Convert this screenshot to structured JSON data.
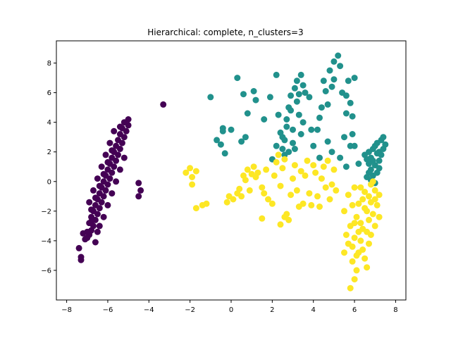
{
  "chart_data": {
    "type": "scatter",
    "title": "Hierarchical: complete, n_clusters=3",
    "xlabel": "",
    "ylabel": "",
    "xlim": [
      -8.5,
      8.5
    ],
    "ylim": [
      -8,
      9.5
    ],
    "xticks": [
      -8,
      -6,
      -4,
      -2,
      0,
      2,
      4,
      6,
      8
    ],
    "yticks": [
      -6,
      -4,
      -2,
      0,
      2,
      4,
      6,
      8
    ],
    "grid": false,
    "legend": "none",
    "series": [
      {
        "color": "#440154",
        "points": [
          [
            -7.3,
            -5.3
          ],
          [
            -7.3,
            -5.1
          ],
          [
            -7.4,
            -4.5
          ],
          [
            -7.1,
            -3.9
          ],
          [
            -6.9,
            -3.6
          ],
          [
            -6.8,
            -3.3
          ],
          [
            -7.0,
            -3.4
          ],
          [
            -6.7,
            -3.0
          ],
          [
            -6.9,
            -2.8
          ],
          [
            -6.6,
            -2.6
          ],
          [
            -6.8,
            -2.4
          ],
          [
            -6.5,
            -2.2
          ],
          [
            -6.7,
            -2.0
          ],
          [
            -6.4,
            -1.8
          ],
          [
            -6.6,
            -1.6
          ],
          [
            -6.3,
            -1.4
          ],
          [
            -6.5,
            -1.2
          ],
          [
            -6.2,
            -1.0
          ],
          [
            -6.4,
            -0.8
          ],
          [
            -6.1,
            -0.6
          ],
          [
            -6.3,
            -0.4
          ],
          [
            -6.0,
            -0.2
          ],
          [
            -6.2,
            0.0
          ],
          [
            -5.9,
            0.2
          ],
          [
            -6.1,
            0.4
          ],
          [
            -5.8,
            0.6
          ],
          [
            -6.0,
            0.8
          ],
          [
            -5.7,
            1.0
          ],
          [
            -5.9,
            1.2
          ],
          [
            -5.6,
            1.4
          ],
          [
            -5.8,
            1.6
          ],
          [
            -5.5,
            1.8
          ],
          [
            -5.7,
            2.0
          ],
          [
            -5.4,
            2.2
          ],
          [
            -5.6,
            2.4
          ],
          [
            -5.3,
            2.6
          ],
          [
            -5.5,
            2.8
          ],
          [
            -5.2,
            3.0
          ],
          [
            -5.4,
            3.2
          ],
          [
            -5.1,
            3.4
          ],
          [
            -5.3,
            3.6
          ],
          [
            -5.0,
            3.8
          ],
          [
            -5.2,
            4.0
          ],
          [
            -5.0,
            4.2
          ],
          [
            -6.5,
            -3.4
          ],
          [
            -6.6,
            -4.1
          ],
          [
            -6.4,
            -3.0
          ],
          [
            -6.2,
            -2.4
          ],
          [
            -6.0,
            -1.6
          ],
          [
            -5.8,
            -0.8
          ],
          [
            -5.6,
            0.0
          ],
          [
            -5.4,
            0.8
          ],
          [
            -5.2,
            1.6
          ],
          [
            -6.9,
            -1.4
          ],
          [
            -6.7,
            -0.6
          ],
          [
            -6.5,
            0.2
          ],
          [
            -6.3,
            1.0
          ],
          [
            -6.1,
            1.8
          ],
          [
            -5.9,
            2.6
          ],
          [
            -5.7,
            3.4
          ],
          [
            -7.2,
            -3.5
          ],
          [
            -6.8,
            -1.9
          ],
          [
            -6.6,
            -1.1
          ],
          [
            -6.2,
            0.5
          ],
          [
            -5.8,
            2.1
          ],
          [
            -5.4,
            3.7
          ],
          [
            -6.0,
            1.3
          ],
          [
            -6.4,
            -0.3
          ],
          [
            -6.8,
            -2.7
          ],
          [
            -7.0,
            -3.8
          ],
          [
            -4.5,
            -0.1
          ],
          [
            -4.4,
            -0.6
          ],
          [
            -4.5,
            -1.0
          ],
          [
            -3.3,
            5.2
          ]
        ]
      },
      {
        "color": "#21918c",
        "points": [
          [
            -1.0,
            5.7
          ],
          [
            -0.4,
            3.6
          ],
          [
            -0.4,
            3.4
          ],
          [
            0.0,
            3.5
          ],
          [
            -0.7,
            2.8
          ],
          [
            -0.5,
            2.5
          ],
          [
            -0.3,
            1.9
          ],
          [
            0.5,
            2.7
          ],
          [
            0.7,
            3.0
          ],
          [
            0.3,
            7.0
          ],
          [
            0.6,
            5.9
          ],
          [
            0.8,
            4.6
          ],
          [
            1.1,
            6.1
          ],
          [
            1.2,
            5.5
          ],
          [
            1.6,
            4.2
          ],
          [
            1.9,
            5.7
          ],
          [
            2.2,
            2.4
          ],
          [
            2.0,
            1.5
          ],
          [
            2.3,
            4.5
          ],
          [
            2.5,
            3.0
          ],
          [
            2.5,
            2.2
          ],
          [
            2.6,
            2.8
          ],
          [
            2.7,
            4.2
          ],
          [
            2.8,
            5.0
          ],
          [
            2.9,
            5.8
          ],
          [
            3.0,
            3.5
          ],
          [
            3.1,
            6.3
          ],
          [
            3.2,
            6.8
          ],
          [
            3.3,
            5.9
          ],
          [
            3.4,
            7.2
          ],
          [
            3.5,
            6.5
          ],
          [
            3.6,
            6.0
          ],
          [
            3.3,
            4.5
          ],
          [
            3.5,
            4.0
          ],
          [
            3.4,
            3.2
          ],
          [
            2.7,
            3.7
          ],
          [
            3.0,
            2.6
          ],
          [
            2.8,
            2.0
          ],
          [
            3.1,
            2.2
          ],
          [
            2.6,
            1.8
          ],
          [
            2.4,
            3.3
          ],
          [
            2.9,
            4.8
          ],
          [
            3.2,
            5.4
          ],
          [
            2.2,
            7.2
          ],
          [
            3.8,
            5.7
          ],
          [
            3.9,
            3.5
          ],
          [
            4.0,
            2.4
          ],
          [
            4.2,
            3.5
          ],
          [
            4.3,
            4.3
          ],
          [
            4.4,
            5.0
          ],
          [
            4.5,
            6.8
          ],
          [
            4.6,
            6.1
          ],
          [
            4.7,
            5.2
          ],
          [
            4.8,
            7.5
          ],
          [
            5.0,
            8.1
          ],
          [
            5.2,
            8.5
          ],
          [
            5.3,
            7.8
          ],
          [
            5.0,
            6.9
          ],
          [
            4.9,
            6.4
          ],
          [
            5.4,
            6.0
          ],
          [
            5.6,
            5.8
          ],
          [
            5.7,
            6.8
          ],
          [
            5.8,
            5.3
          ],
          [
            4.3,
            1.6
          ],
          [
            4.7,
            2.7
          ],
          [
            4.9,
            2.0
          ],
          [
            5.3,
            1.6
          ],
          [
            5.6,
            1.0
          ],
          [
            5.5,
            3.0
          ],
          [
            5.8,
            2.4
          ],
          [
            6.0,
            2.4
          ],
          [
            6.2,
            1.2
          ],
          [
            5.9,
            3.2
          ],
          [
            6.0,
            7.0
          ],
          [
            5.6,
            4.6
          ],
          [
            5.9,
            4.4
          ],
          [
            6.5,
            1.8
          ],
          [
            6.6,
            1.5
          ],
          [
            6.7,
            2.0
          ],
          [
            6.8,
            1.6
          ],
          [
            6.9,
            2.2
          ],
          [
            7.0,
            2.4
          ],
          [
            7.1,
            2.6
          ],
          [
            7.2,
            2.0
          ],
          [
            7.3,
            2.8
          ],
          [
            7.4,
            3.0
          ],
          [
            7.5,
            2.5
          ],
          [
            6.7,
            1.2
          ],
          [
            6.8,
            0.8
          ],
          [
            6.9,
            0.4
          ],
          [
            7.0,
            1.1
          ],
          [
            7.1,
            0.6
          ],
          [
            7.2,
            1.4
          ],
          [
            7.3,
            1.8
          ],
          [
            6.6,
            0.3
          ],
          [
            6.8,
            0.1
          ],
          [
            7.0,
            -0.1
          ],
          [
            7.2,
            0.9
          ],
          [
            7.4,
            2.2
          ],
          [
            6.7,
            0.6
          ],
          [
            6.9,
            1.4
          ],
          [
            7.1,
            1.9
          ]
        ]
      },
      {
        "color": "#fde725",
        "points": [
          [
            -2.2,
            0.6
          ],
          [
            -2.0,
            0.9
          ],
          [
            -1.9,
            0.3
          ],
          [
            -1.9,
            -0.2
          ],
          [
            -1.7,
            0.7
          ],
          [
            -1.7,
            -1.8
          ],
          [
            -1.4,
            -1.6
          ],
          [
            -1.2,
            -1.5
          ],
          [
            -0.2,
            -1.4
          ],
          [
            -0.1,
            -1.0
          ],
          [
            0.1,
            -1.2
          ],
          [
            0.3,
            -0.8
          ],
          [
            0.4,
            -0.5
          ],
          [
            0.5,
            -1.0
          ],
          [
            0.6,
            0.4
          ],
          [
            0.7,
            0.1
          ],
          [
            0.8,
            0.8
          ],
          [
            0.9,
            -0.6
          ],
          [
            1.0,
            0.5
          ],
          [
            1.1,
            1.0
          ],
          [
            1.2,
            0.3
          ],
          [
            1.3,
            0.6
          ],
          [
            1.5,
            -0.4
          ],
          [
            1.6,
            -0.8
          ],
          [
            1.7,
            0.8
          ],
          [
            1.8,
            -1.2
          ],
          [
            2.0,
            -1.5
          ],
          [
            2.1,
            0.4
          ],
          [
            2.2,
            1.3
          ],
          [
            2.3,
            1.8
          ],
          [
            2.4,
            -0.3
          ],
          [
            2.5,
            0.9
          ],
          [
            2.6,
            1.5
          ],
          [
            2.7,
            -2.2
          ],
          [
            2.8,
            -2.6
          ],
          [
            2.9,
            -0.9
          ],
          [
            3.0,
            0.2
          ],
          [
            3.1,
            1.1
          ],
          [
            3.2,
            -0.6
          ],
          [
            3.3,
            -1.7
          ],
          [
            3.4,
            0.7
          ],
          [
            3.5,
            -1.5
          ],
          [
            3.6,
            0.4
          ],
          [
            3.7,
            1.4
          ],
          [
            3.8,
            -0.8
          ],
          [
            3.9,
            -1.6
          ],
          [
            4.0,
            1.1
          ],
          [
            4.1,
            0.6
          ],
          [
            4.2,
            -1.0
          ],
          [
            4.3,
            -1.7
          ],
          [
            4.4,
            0.2
          ],
          [
            4.5,
            1.0
          ],
          [
            4.6,
            -0.4
          ],
          [
            4.7,
            1.4
          ],
          [
            4.8,
            -1.2
          ],
          [
            4.9,
            -0.2
          ],
          [
            5.0,
            0.8
          ],
          [
            5.1,
            -0.6
          ],
          [
            2.4,
            -2.9
          ],
          [
            2.6,
            -2.4
          ],
          [
            1.5,
            -2.5
          ],
          [
            5.5,
            -2.0
          ],
          [
            5.7,
            -0.9
          ],
          [
            5.9,
            -1.6
          ],
          [
            6.0,
            -0.4
          ],
          [
            6.1,
            -2.4
          ],
          [
            6.2,
            -3.4
          ],
          [
            6.3,
            -4.0
          ],
          [
            6.4,
            -4.6
          ],
          [
            6.5,
            -5.2
          ],
          [
            6.6,
            -5.8
          ],
          [
            6.1,
            -6.0
          ],
          [
            6.0,
            -6.6
          ],
          [
            5.8,
            -7.2
          ],
          [
            5.9,
            -5.4
          ],
          [
            6.2,
            -4.8
          ],
          [
            6.0,
            -3.8
          ],
          [
            6.3,
            -2.8
          ],
          [
            6.5,
            -1.8
          ],
          [
            6.7,
            -1.0
          ],
          [
            6.8,
            -0.2
          ],
          [
            6.9,
            0.0
          ],
          [
            7.0,
            -0.6
          ],
          [
            7.1,
            -1.6
          ],
          [
            7.2,
            -2.4
          ],
          [
            7.0,
            -3.0
          ],
          [
            6.8,
            -3.6
          ],
          [
            6.7,
            -4.2
          ],
          [
            6.6,
            -2.0
          ],
          [
            6.4,
            -1.2
          ],
          [
            6.3,
            -0.4
          ],
          [
            6.5,
            -0.7
          ],
          [
            6.7,
            -2.6
          ],
          [
            6.9,
            -2.2
          ],
          [
            7.2,
            -0.9
          ],
          [
            5.8,
            -3.0
          ],
          [
            5.7,
            -4.2
          ],
          [
            5.6,
            -3.6
          ],
          [
            5.5,
            -4.8
          ],
          [
            6.1,
            -5.0
          ],
          [
            6.4,
            -3.2
          ],
          [
            6.6,
            -3.4
          ],
          [
            6.8,
            -1.4
          ],
          [
            7.0,
            -1.2
          ],
          [
            6.2,
            -1.5
          ],
          [
            6.0,
            -2.8
          ],
          [
            5.9,
            -4.4
          ]
        ]
      }
    ]
  }
}
